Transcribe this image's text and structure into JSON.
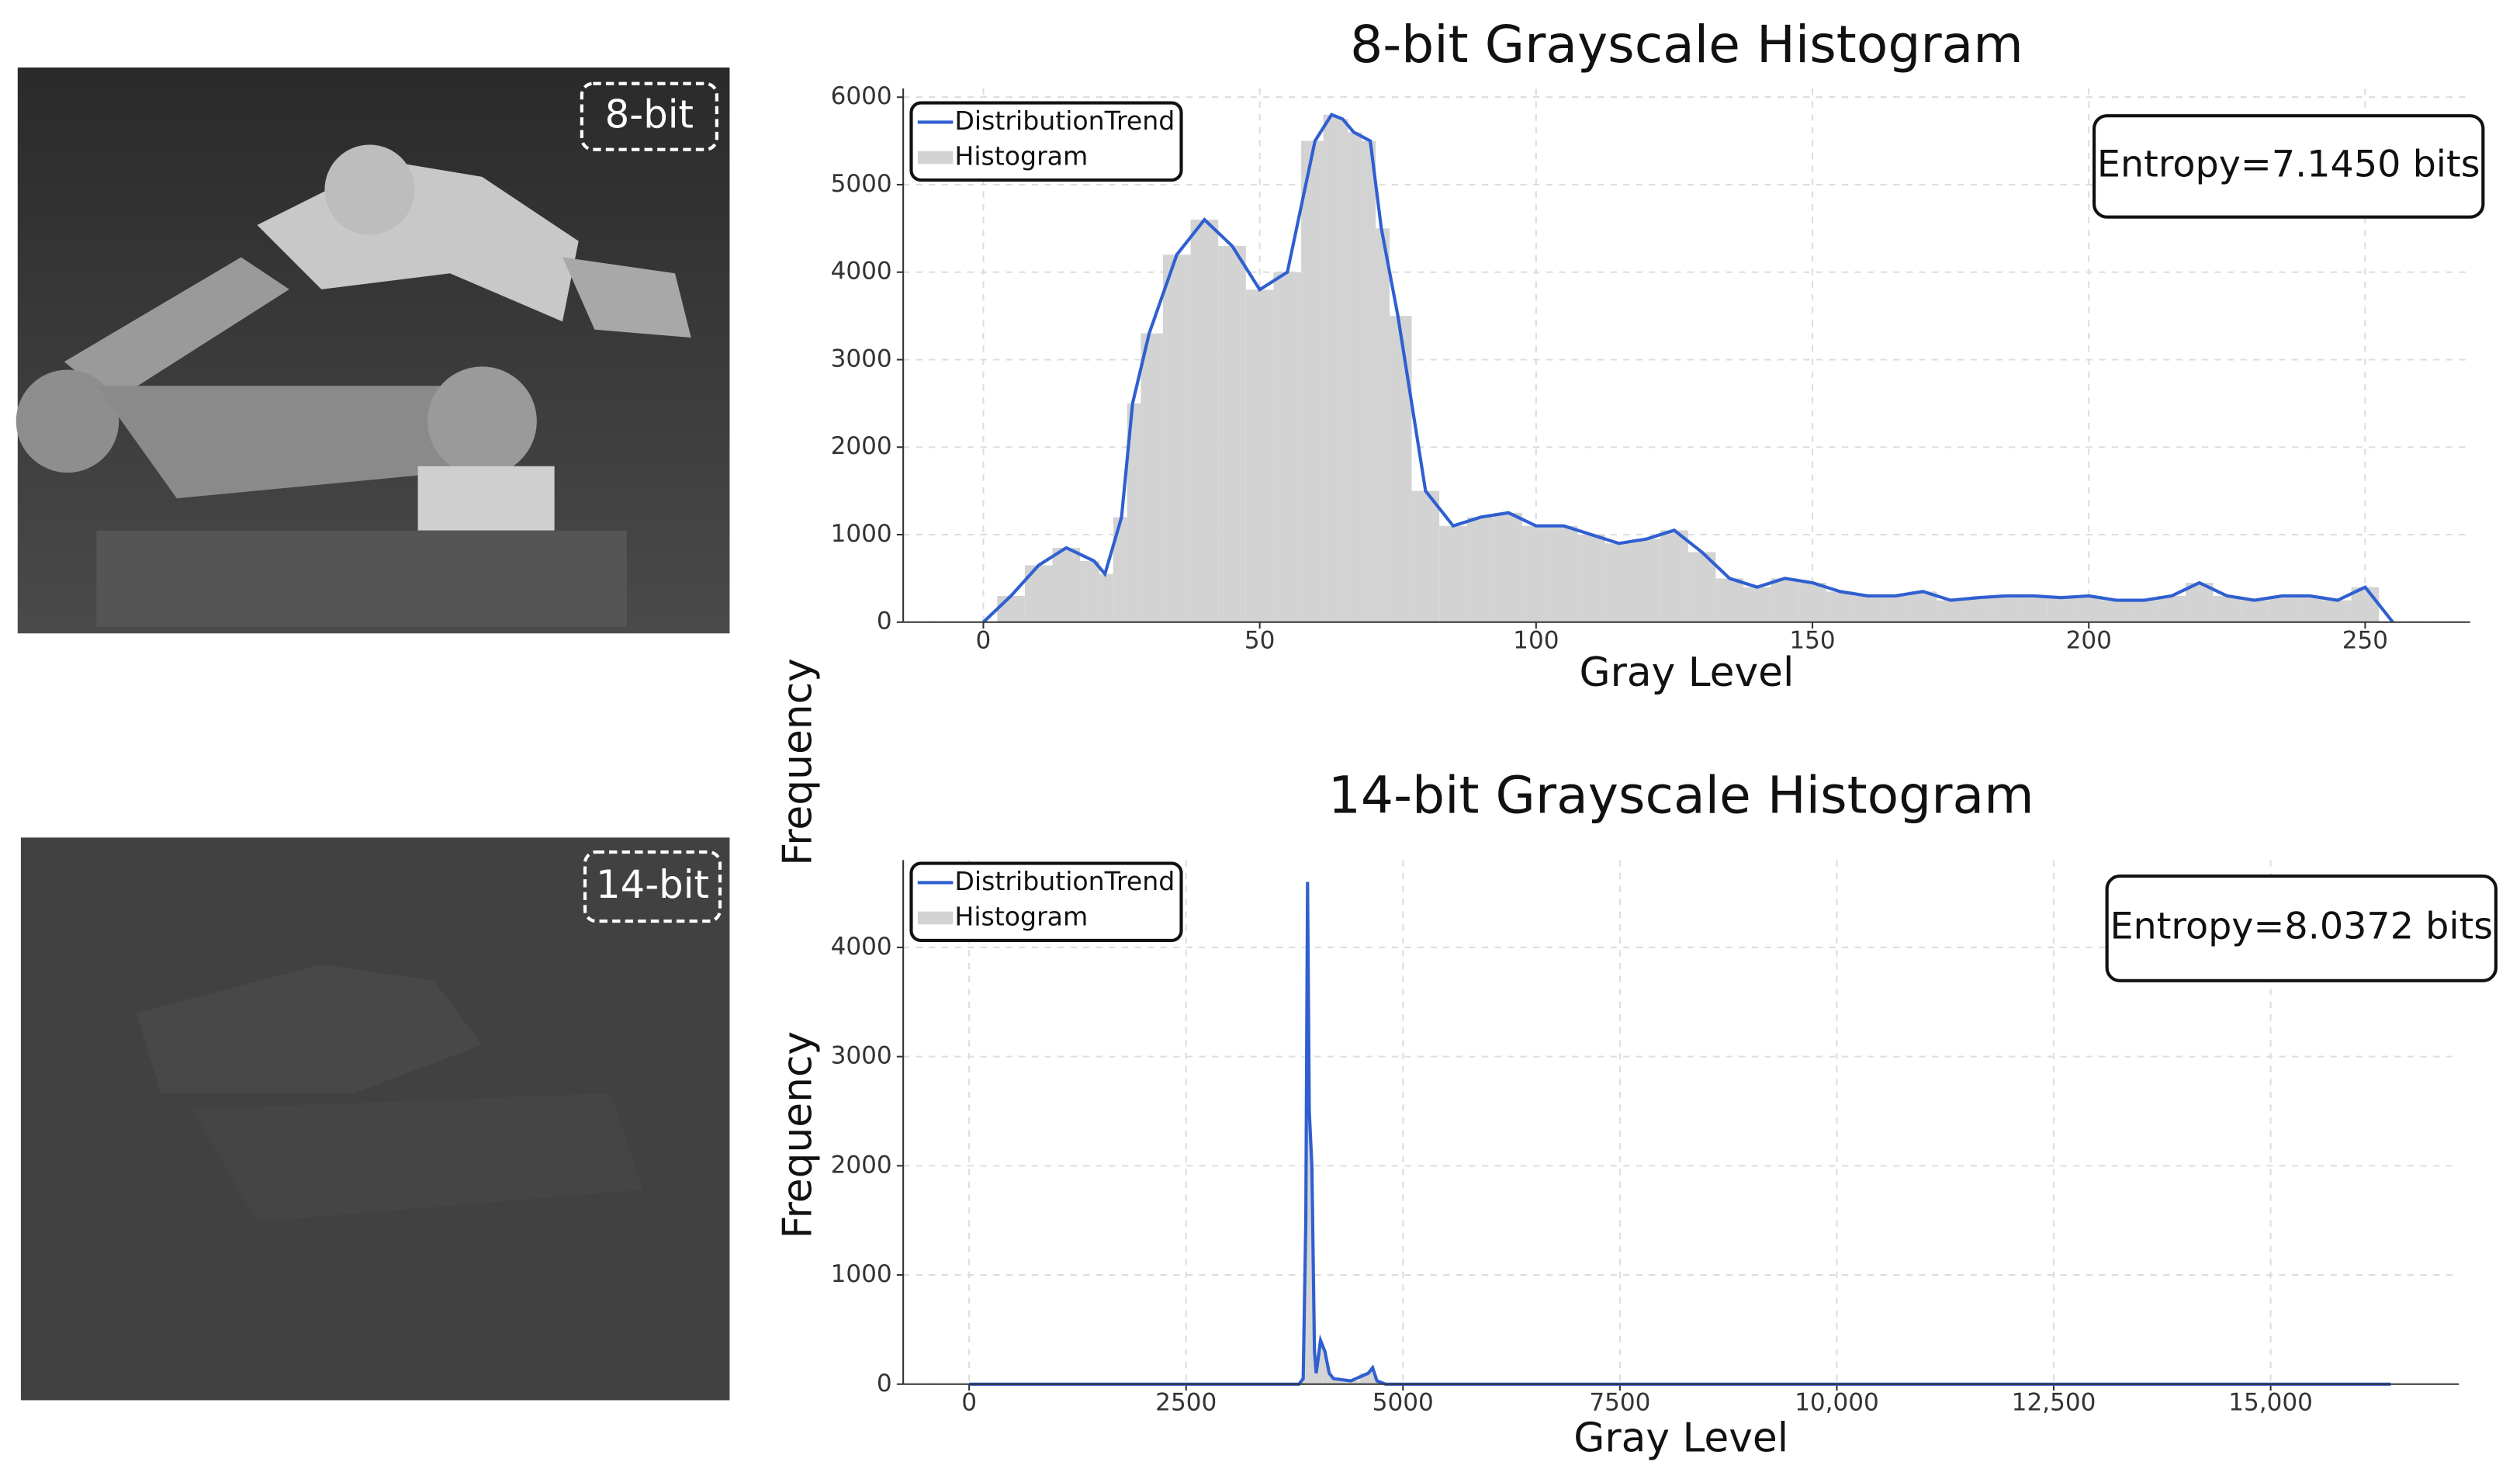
{
  "images": [
    {
      "label": "8-bit"
    },
    {
      "label": "14-bit"
    }
  ],
  "chart_data": [
    {
      "type": "histogram-line",
      "title": "8-bit Grayscale Histogram",
      "x_label": "Gray Level",
      "y_label": "Frequency",
      "annotations": [
        "Entropy=7.1450 bits"
      ],
      "x": [
        0,
        5,
        10,
        15,
        20,
        22,
        25,
        27,
        30,
        35,
        40,
        45,
        50,
        55,
        60,
        63,
        65,
        67,
        70,
        72,
        75,
        80,
        85,
        90,
        95,
        100,
        105,
        110,
        115,
        120,
        125,
        130,
        135,
        140,
        145,
        150,
        155,
        160,
        165,
        170,
        175,
        180,
        185,
        190,
        195,
        200,
        205,
        210,
        215,
        220,
        225,
        230,
        235,
        240,
        245,
        250,
        255
      ],
      "series": [
        {
          "name": "DistributionTrend",
          "color": "#2f5fd0",
          "values": [
            0,
            300,
            650,
            850,
            700,
            550,
            1200,
            2500,
            3300,
            4200,
            4600,
            4300,
            3800,
            4000,
            5500,
            5800,
            5750,
            5600,
            5500,
            4500,
            3500,
            1500,
            1100,
            1200,
            1250,
            1100,
            1100,
            1000,
            900,
            950,
            1050,
            800,
            500,
            400,
            500,
            450,
            350,
            300,
            300,
            350,
            250,
            280,
            300,
            300,
            280,
            300,
            250,
            250,
            300,
            450,
            300,
            250,
            300,
            300,
            250,
            400,
            0
          ]
        },
        {
          "name": "Histogram",
          "color": "#d3d3d3",
          "values": [
            0,
            300,
            650,
            850,
            700,
            550,
            1200,
            2500,
            3300,
            4200,
            4600,
            4300,
            3800,
            4000,
            5500,
            5800,
            5750,
            5600,
            5500,
            4500,
            3500,
            1500,
            1100,
            1200,
            1250,
            1100,
            1100,
            1000,
            900,
            950,
            1050,
            800,
            500,
            400,
            500,
            450,
            350,
            300,
            300,
            350,
            250,
            280,
            300,
            300,
            280,
            300,
            250,
            250,
            300,
            450,
            300,
            250,
            300,
            300,
            250,
            400,
            0
          ]
        }
      ],
      "xlim": [
        -14.5,
        269
      ],
      "ylim": [
        0,
        6100
      ],
      "xticks": [
        0,
        50,
        100,
        150,
        200,
        250
      ],
      "yticks": [
        0,
        1000,
        2000,
        3000,
        4000,
        5000,
        6000
      ],
      "grid": true
    },
    {
      "type": "histogram-line",
      "title": "14-bit Grayscale Histogram",
      "x_label": "Gray Level",
      "y_label": "Frequency",
      "annotations": [
        "Entropy=8.0372 bits"
      ],
      "x": [
        0,
        3800,
        3850,
        3880,
        3900,
        3920,
        3950,
        3980,
        4000,
        4050,
        4100,
        4150,
        4200,
        4400,
        4600,
        4650,
        4700,
        4800,
        16383
      ],
      "series": [
        {
          "name": "DistributionTrend",
          "color": "#2f5fd0",
          "values": [
            0,
            0,
            50,
            1500,
            4600,
            2500,
            2000,
            300,
            100,
            400,
            300,
            100,
            50,
            30,
            100,
            150,
            30,
            0,
            0
          ]
        },
        {
          "name": "Histogram",
          "color": "#d3d3d3",
          "values": [
            0,
            0,
            50,
            1500,
            4600,
            2500,
            2000,
            300,
            100,
            400,
            300,
            100,
            50,
            30,
            100,
            150,
            30,
            0,
            0
          ]
        }
      ],
      "xlim": [
        -760,
        17170
      ],
      "ylim": [
        0,
        4800
      ],
      "xticks": [
        0,
        2500,
        5000,
        7500,
        {
          "value": 10000,
          "label": "10,000"
        },
        {
          "value": 12500,
          "label": "12,500"
        },
        {
          "value": 15000,
          "label": "15,000"
        }
      ],
      "yticks": [
        0,
        1000,
        2000,
        3000,
        4000
      ],
      "grid": true
    }
  ]
}
